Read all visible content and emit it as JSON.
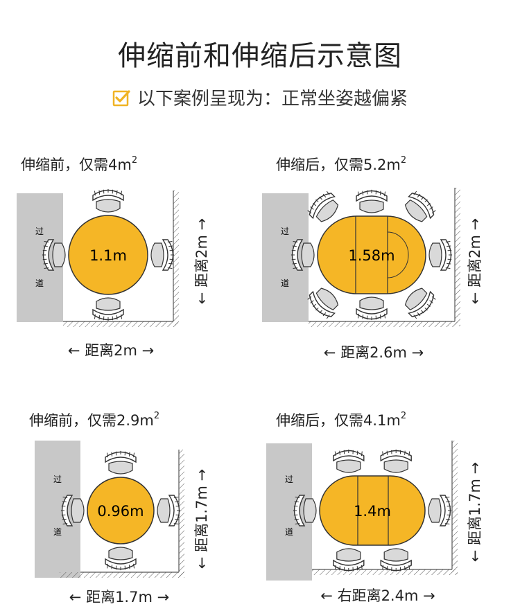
{
  "title": "伸缩前和伸缩后示意图",
  "subtitle": "以下案例呈现为：正常坐姿越偏紧",
  "aisle_top": "过",
  "aisle_bottom": "道",
  "colors": {
    "table": "#F5B626",
    "aisle": "#C8C8C8",
    "check": "#F0B323",
    "text": "#222222"
  },
  "icons": {
    "check": "check-square-icon",
    "chair": "chair-icon"
  },
  "panels": [
    {
      "caption": "伸缩前，仅需4m",
      "sup": "2",
      "table_size": "1.1m",
      "width_label": "← 距离2m →",
      "height_label": "← 距离2m →",
      "shape": "round",
      "chairs": 4
    },
    {
      "caption": "伸缩后，仅需5.2m",
      "sup": "2",
      "table_size": "1.58m",
      "width_label": "← 距离2.6m →",
      "height_label": "← 距离2m →",
      "shape": "oval",
      "chairs": 8
    },
    {
      "caption": "伸缩前，仅需2.9m",
      "sup": "2",
      "table_size": "0.96m",
      "width_label": "← 距离1.7m →",
      "height_label": "← 距离1.7m →",
      "shape": "round",
      "chairs": 4
    },
    {
      "caption": "伸缩后，仅需4.1m",
      "sup": "2",
      "table_size": "1.4m",
      "width_label": "← 右距离2.4m →",
      "height_label": "← 距离1.7m →",
      "shape": "oval",
      "chairs": 6
    }
  ]
}
